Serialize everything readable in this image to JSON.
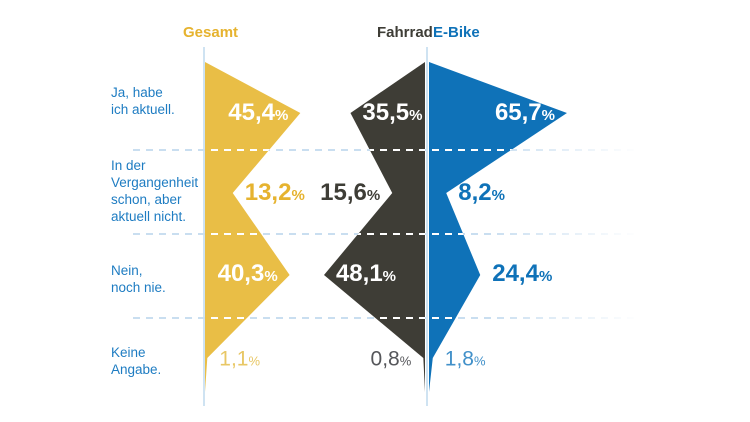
{
  "chart_data": {
    "type": "diverging-kite",
    "title": "",
    "xlabel": "",
    "ylabel": "",
    "unit": "%",
    "percent_sign": "%",
    "legend_position": "top",
    "grid": "dashed horizontal category separators",
    "background": "#ffffff",
    "category_label_color": "#1e7cc2",
    "axis_line_color": "#cfe3f2",
    "separator_line_color": "#c9def0",
    "inside_value_color": "#ffffff",
    "categories": [
      "Ja, habe\nich aktuell.",
      "In der\nVergangenheit\nschon, aber\naktuell nicht.",
      "Nein,\nnoch nie.",
      "Keine\nAngabe."
    ],
    "series": [
      {
        "name": "Gesamt",
        "fill": "#e9be46",
        "header_color": "#e6b32f",
        "value_color": "#e6b32f",
        "muted_value_color": "#e8c765",
        "values": [
          45.4,
          13.2,
          40.3,
          1.1
        ],
        "value_labels": [
          "45,4",
          "13,2",
          "40,3",
          "1,1"
        ]
      },
      {
        "name": "Fahrrad",
        "fill": "#3e3d36",
        "header_color": "#3e3d36",
        "value_color": "#3e3d36",
        "muted_value_color": "#55565a",
        "values": [
          35.5,
          15.6,
          48.1,
          0.8
        ],
        "value_labels": [
          "35,5",
          "15,6",
          "48,1",
          "0,8"
        ]
      },
      {
        "name": "E-Bike",
        "fill": "#0f72b8",
        "header_color": "#0f72b8",
        "value_color": "#0f72b8",
        "muted_value_color": "#4190c9",
        "values": [
          65.7,
          8.2,
          24.4,
          1.8
        ],
        "value_labels": [
          "65,7",
          "8,2",
          "24,4",
          "1,8"
        ]
      }
    ]
  }
}
